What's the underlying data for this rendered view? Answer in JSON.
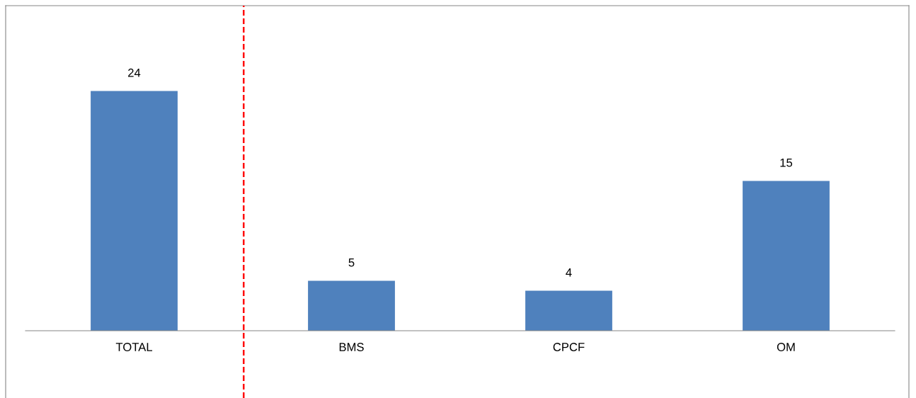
{
  "chart_data": {
    "type": "bar",
    "categories": [
      "TOTAL",
      "BMS",
      "CPCF",
      "OM"
    ],
    "values": [
      24,
      5,
      4,
      15
    ],
    "color": "#4f81bd",
    "data_labels": true,
    "grid": false,
    "legend": false,
    "tick_labels": "x"
  }
}
